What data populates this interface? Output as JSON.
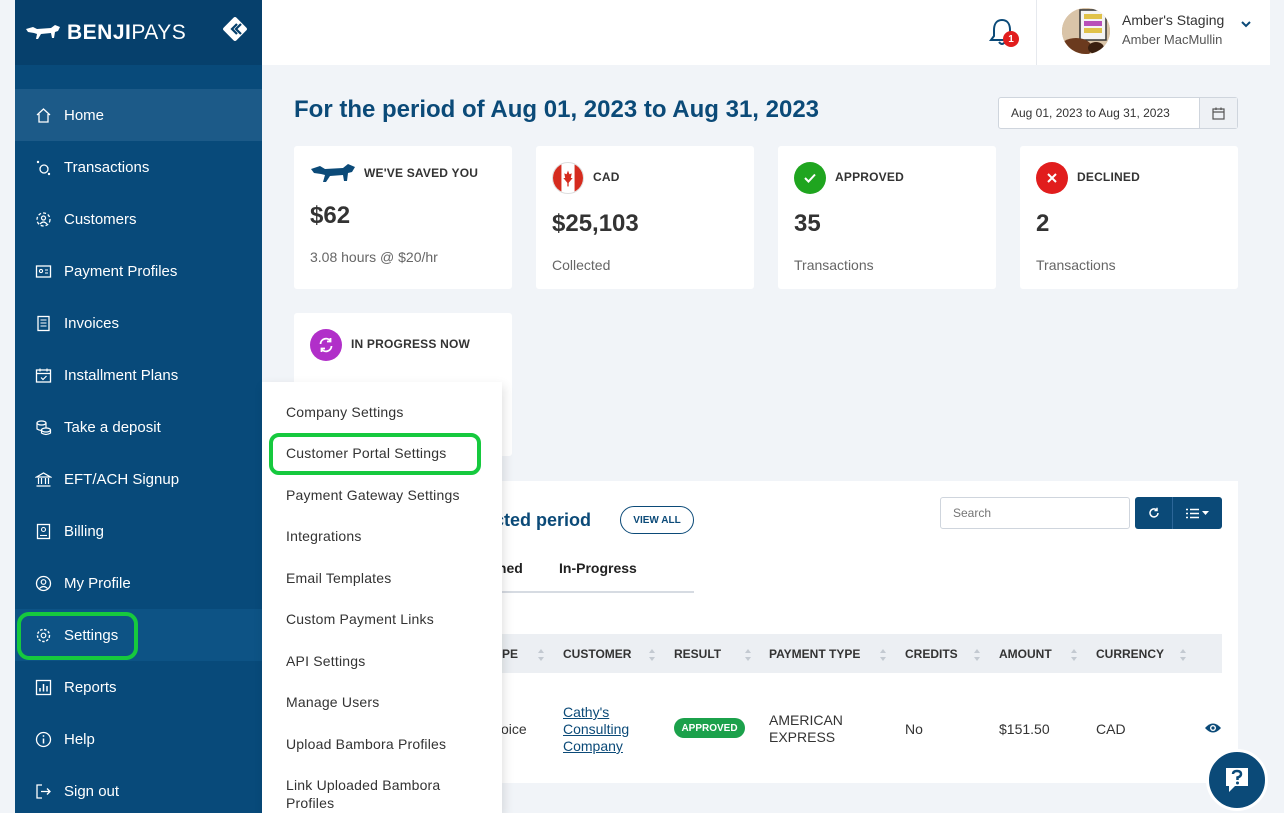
{
  "brand": {
    "name_bold": "BENJI",
    "name_light": "PAYS"
  },
  "sidebar": {
    "items": [
      {
        "label": "Home",
        "icon": "home-icon"
      },
      {
        "label": "Transactions",
        "icon": "transactions-icon"
      },
      {
        "label": "Customers",
        "icon": "customers-icon"
      },
      {
        "label": "Payment Profiles",
        "icon": "payment-profiles-icon"
      },
      {
        "label": "Invoices",
        "icon": "invoices-icon"
      },
      {
        "label": "Installment Plans",
        "icon": "calendar-icon"
      },
      {
        "label": "Take a deposit",
        "icon": "coins-icon"
      },
      {
        "label": "EFT/ACH Signup",
        "icon": "bank-icon"
      },
      {
        "label": "Billing",
        "icon": "billing-icon"
      },
      {
        "label": "My Profile",
        "icon": "user-icon"
      },
      {
        "label": "Settings",
        "icon": "gear-icon"
      },
      {
        "label": "Reports",
        "icon": "reports-icon"
      },
      {
        "label": "Help",
        "icon": "info-icon"
      },
      {
        "label": "Sign out",
        "icon": "sign-out-icon"
      }
    ]
  },
  "header": {
    "notification_count": "1",
    "org_name": "Amber's Staging",
    "user_name": "Amber MacMullin"
  },
  "period": {
    "title": "For the period of Aug 01, 2023 to Aug 31, 2023",
    "date_range_value": "Aug 01, 2023 to Aug 31, 2023"
  },
  "cards": {
    "saved": {
      "label": "WE'VE SAVED YOU",
      "value": "$62",
      "sub": "3.08 hours @ $20/hr"
    },
    "cad": {
      "label": "CAD",
      "value": "$25,103",
      "sub": "Collected"
    },
    "approved": {
      "label": "APPROVED",
      "value": "35",
      "sub": "Transactions"
    },
    "declined": {
      "label": "DECLINED",
      "value": "2",
      "sub": "Transactions"
    },
    "in_progress": {
      "label": "IN PROGRESS NOW"
    }
  },
  "transactions": {
    "title_partial": "cted period",
    "view_all": "VIEW ALL",
    "search_placeholder": "Search",
    "tabs": [
      "ined",
      "In-Progress"
    ],
    "columns": [
      "YPE",
      "CUSTOMER",
      "RESULT",
      "PAYMENT TYPE",
      "CREDITS",
      "AMOUNT",
      "CURRENCY"
    ],
    "row": {
      "type": "voice",
      "customer_line1": "Cathy's",
      "customer_line2": "Consulting",
      "customer_line3": "Company",
      "result": "APPROVED",
      "payment_line1": "AMERICAN",
      "payment_line2": "EXPRESS",
      "credits": "No",
      "amount": "$151.50",
      "currency": "CAD"
    }
  },
  "settings_menu": {
    "items": [
      "Company Settings",
      "Customer Portal Settings",
      "Payment Gateway Settings",
      "Integrations",
      "Email Templates",
      "Custom Payment Links",
      "API Settings",
      "Manage Users",
      "Upload Bambora Profiles",
      "Link Uploaded Bambora",
      "Profiles"
    ]
  },
  "colors": {
    "sidebar": "#084a7a",
    "accent": "#0b4a78",
    "highlight": "#16c93e",
    "approved": "#1ba14b",
    "declined": "#e11d1d"
  }
}
